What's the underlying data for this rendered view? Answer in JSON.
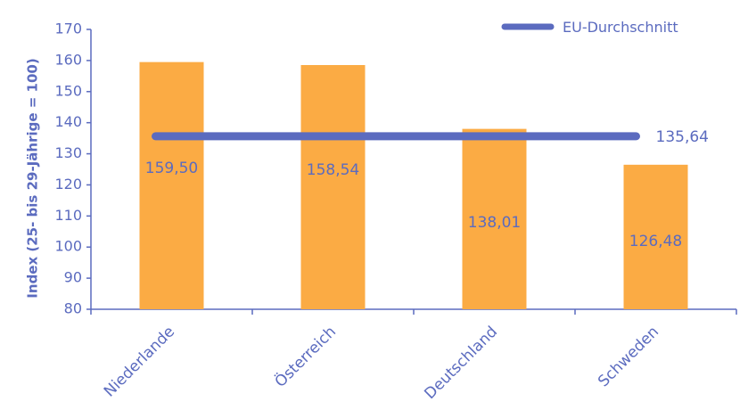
{
  "chart_data": {
    "type": "bar",
    "categories": [
      "Niederlande",
      "Österreich",
      "Deutschland",
      "Schweden"
    ],
    "series": [
      {
        "values": [
          159.5,
          158.54,
          138.01,
          126.48
        ]
      }
    ],
    "data_labels": [
      "159,50",
      "158,54",
      "138,01",
      "126,48"
    ],
    "reference_line": {
      "name": "EU-Durchschnitt",
      "value": 135.64,
      "label": "135,64"
    },
    "ylabel": "Index (25- bis 29-Jährige = 100)",
    "xlabel": "",
    "title": "",
    "ylim": [
      80,
      170
    ],
    "yticks": [
      80,
      90,
      100,
      110,
      120,
      130,
      140,
      150,
      160,
      170
    ],
    "grid": false,
    "legend_position": "top-right",
    "colors": {
      "bar": "#fbab44",
      "line": "#5b6bbf",
      "text": "#5b6bbf",
      "axis": "#5b6bbf"
    }
  }
}
